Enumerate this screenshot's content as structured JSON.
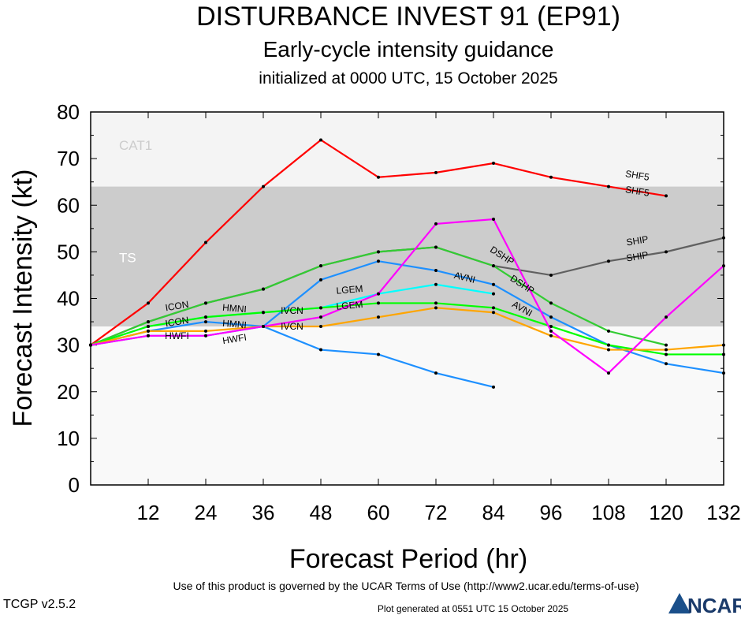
{
  "chart_data": {
    "type": "line",
    "title": "DISTURBANCE INVEST 91 (EP91)",
    "subtitle": "Early-cycle intensity guidance",
    "subtitle2": "initialized at 0000 UTC, 15 October 2025",
    "xlabel": "Forecast Period (hr)",
    "ylabel": "Forecast Intensity (kt)",
    "xlim": [
      0,
      132
    ],
    "ylim": [
      0,
      80
    ],
    "x_ticks": [
      12,
      24,
      36,
      48,
      60,
      72,
      84,
      96,
      108,
      120,
      132
    ],
    "y_ticks": [
      0,
      10,
      20,
      30,
      40,
      50,
      60,
      70,
      80
    ],
    "bands": [
      {
        "label": "CAT1",
        "from": 64,
        "to": 80,
        "color": "#f4f4f4"
      },
      {
        "label": "TS",
        "from": 34,
        "to": 64,
        "color": "#cccccc"
      }
    ],
    "x": [
      0,
      12,
      24,
      36,
      48,
      60,
      72,
      84,
      96,
      108,
      120,
      132
    ],
    "series": [
      {
        "name": "SHF5",
        "color": "#ff0000",
        "values": [
          30,
          39,
          52,
          64,
          74,
          66,
          67,
          69,
          66,
          64,
          62,
          null
        ]
      },
      {
        "name": "SHIP",
        "color": "#606060",
        "values": [
          30,
          35,
          39,
          42,
          47,
          50,
          51,
          47,
          45,
          48,
          50,
          53
        ]
      },
      {
        "name": "DSHP",
        "color": "#33cc33",
        "values": [
          30,
          35,
          39,
          42,
          47,
          50,
          51,
          47,
          39,
          33,
          30,
          null
        ]
      },
      {
        "name": "AVNI",
        "color": "#1e90ff",
        "values": [
          30,
          32,
          32,
          34,
          44,
          48,
          46,
          43,
          36,
          30,
          26,
          24
        ]
      },
      {
        "name": "HMNI",
        "color": "#1e90ff",
        "values": [
          30,
          33,
          35,
          34,
          29,
          28,
          24,
          21,
          null,
          null,
          null,
          null
        ]
      },
      {
        "name": "ICON",
        "color": "#00ffff",
        "values": [
          30,
          34,
          36,
          37,
          38,
          41,
          43,
          41,
          null,
          null,
          null,
          null
        ]
      },
      {
        "name": "LGEM",
        "color": "#00ff00",
        "values": [
          30,
          34,
          36,
          37,
          38,
          39,
          39,
          38,
          34,
          30,
          28,
          28
        ]
      },
      {
        "name": "IVCN",
        "color": "#ffa500",
        "values": [
          30,
          33,
          33,
          34,
          34,
          36,
          38,
          37,
          32,
          29,
          29,
          30
        ]
      },
      {
        "name": "HWFI",
        "color": "#ff00ff",
        "values": [
          30,
          32,
          32,
          34,
          36,
          41,
          56,
          57,
          33,
          24,
          36,
          47
        ]
      }
    ]
  },
  "footer": {
    "terms": "Use of this product is governed by the UCAR Terms of Use (http://www2.ucar.edu/terms-of-use)",
    "version": "TCGP v2.5.2",
    "generated": "Plot generated at 0551 UTC   15 October 2025",
    "logo": "NCAR"
  }
}
